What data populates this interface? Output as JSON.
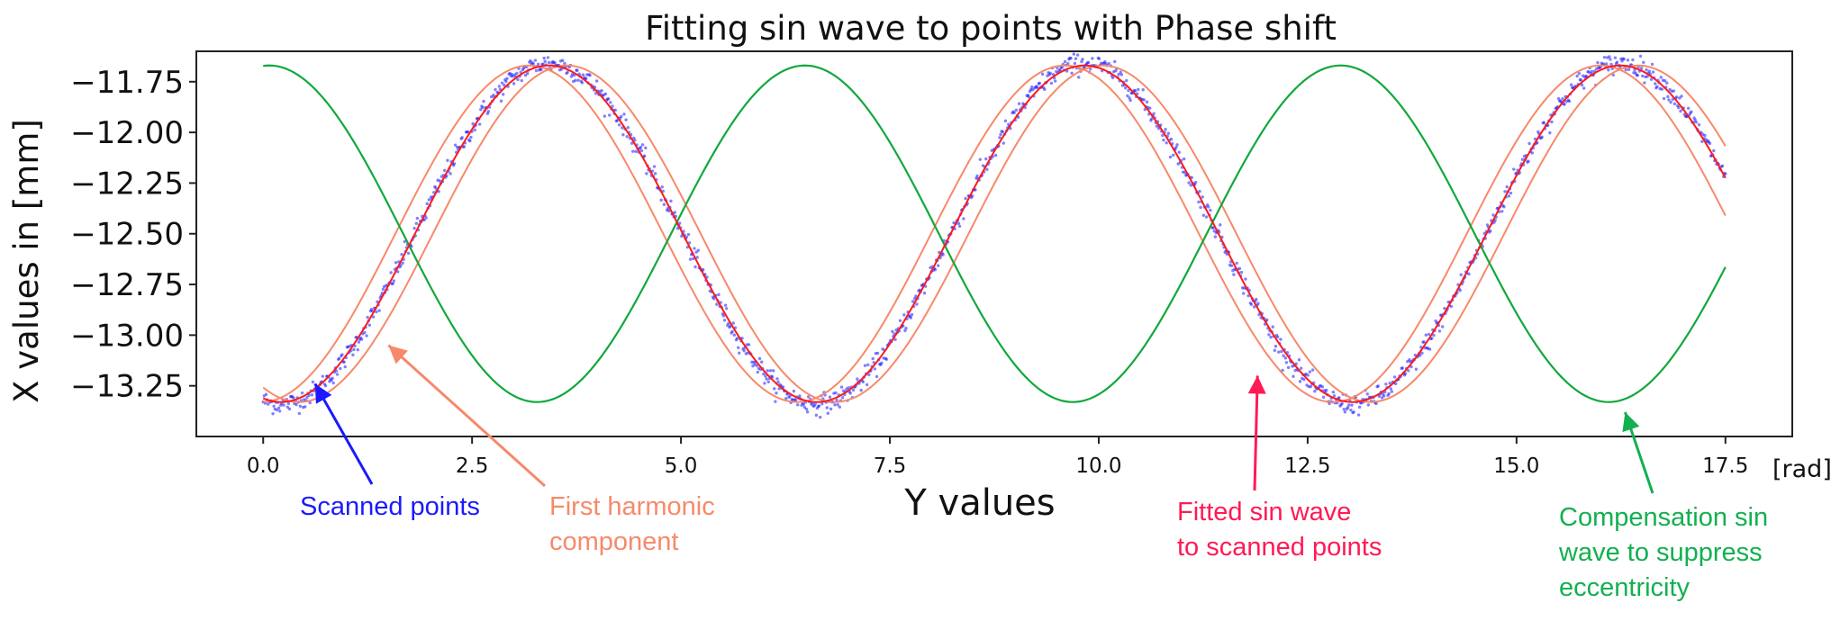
{
  "chart_data": {
    "type": "line",
    "title": "Fitting sin wave to points with Phase shift",
    "xlabel": "Y values",
    "ylabel": "X values in [mm]",
    "x_unit_note": "[rad]",
    "xlim": [
      -0.8,
      18.3
    ],
    "ylim": [
      -13.5,
      -11.6
    ],
    "xticks": [
      0.0,
      2.5,
      5.0,
      7.5,
      10.0,
      12.5,
      15.0,
      17.5
    ],
    "xtick_labels": [
      "0.0",
      "2.5",
      "5.0",
      "7.5",
      "10.0",
      "12.5",
      "15.0",
      "17.5"
    ],
    "yticks": [
      -11.75,
      -12.0,
      -12.25,
      -12.5,
      -12.75,
      -13.0,
      -13.25
    ],
    "ytick_labels": [
      "−11.75",
      "−12.00",
      "−12.25",
      "−12.50",
      "−12.75",
      "−13.00",
      "−13.25"
    ],
    "grid": false,
    "x_range": [
      0.0,
      17.5
    ],
    "colors": {
      "scanned": "#1a1aff",
      "fitted": "#ff1a1a",
      "harmonic": "#f7896b",
      "compensation": "#12a83c"
    },
    "series": [
      {
        "kind": "scatter",
        "color": "#1a1aff",
        "model": {
          "mean": -12.5,
          "amplitude": 0.84,
          "angular_freq": 0.98,
          "phase": -1.78,
          "noise": 0.025
        }
      },
      {
        "kind": "line",
        "color": "#ff1a1a",
        "model": {
          "mean": -12.5,
          "amplitude": 0.83,
          "angular_freq": 0.98,
          "phase": -1.78
        }
      },
      {
        "kind": "line",
        "color": "#f7896b",
        "model": {
          "mean": -12.5,
          "amplitude": 0.83,
          "angular_freq": 0.98,
          "phase": -1.55
        }
      },
      {
        "kind": "line",
        "color": "#f7896b",
        "model": {
          "mean": -12.5,
          "amplitude": 0.83,
          "angular_freq": 0.98,
          "phase": -1.99
        }
      },
      {
        "kind": "line",
        "color": "#12a83c",
        "model": {
          "mean": -12.5,
          "amplitude": 0.83,
          "angular_freq": 0.98,
          "phase": 1.5
        }
      }
    ],
    "annotations": [
      {
        "lines": [
          "Scanned points"
        ],
        "color": "#1a1aff",
        "arrow_to": [
          0.62,
          -13.24
        ]
      },
      {
        "lines": [
          "First harmonic",
          "component"
        ],
        "color": "#f7896b",
        "arrow_to": [
          1.5,
          -13.05
        ]
      },
      {
        "lines": [
          "Fitted sin wave",
          "to scanned points"
        ],
        "color": "#ff1a55",
        "arrow_to": [
          11.9,
          -13.2
        ]
      },
      {
        "lines": [
          "Compensation sin",
          "wave to suppress",
          "eccentricity"
        ],
        "color": "#12b050",
        "arrow_to": [
          16.3,
          -13.38
        ]
      }
    ]
  }
}
